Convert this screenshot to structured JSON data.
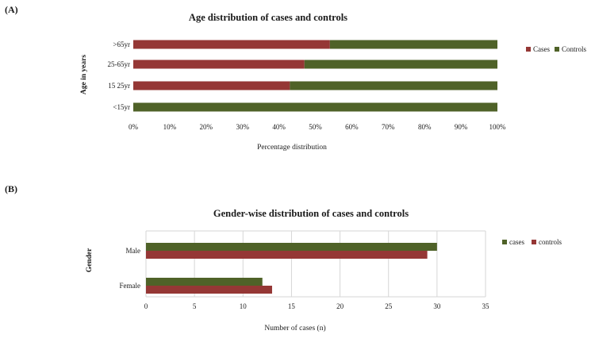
{
  "colors": {
    "red": "#953735",
    "green": "#4f6228"
  },
  "chart_data": [
    {
      "panel_label": "(A)",
      "type": "bar",
      "orientation": "horizontal",
      "stacked": "percent",
      "title": "Age distribution of cases and controls",
      "xlabel": "Percentage distribution",
      "ylabel": "Age in years",
      "categories": [
        ">65yr",
        "25-65yr",
        "15 25yr",
        "<15yr"
      ],
      "series": [
        {
          "name": "Cases",
          "color": "#953735",
          "values": [
            54,
            47,
            43,
            0
          ]
        },
        {
          "name": "Controls",
          "color": "#4f6228",
          "values": [
            46,
            53,
            57,
            100
          ]
        }
      ],
      "xticks": [
        "0%",
        "10%",
        "20%",
        "30%",
        "40%",
        "50%",
        "60%",
        "70%",
        "80%",
        "90%",
        "100%"
      ],
      "xlim": [
        0,
        100
      ],
      "grid": false,
      "legend": "right"
    },
    {
      "panel_label": "(B)",
      "type": "bar",
      "orientation": "horizontal",
      "stacked": "none",
      "title": "Gender-wise distribution of cases and controls",
      "xlabel": "Number of cases (n)",
      "ylabel": "Gender",
      "categories": [
        "Male",
        "Female"
      ],
      "series": [
        {
          "name": "cases",
          "color": "#4f6228",
          "values": [
            30,
            12
          ]
        },
        {
          "name": "controls",
          "color": "#953735",
          "values": [
            29,
            13
          ]
        }
      ],
      "xticks": [
        "0",
        "5",
        "10",
        "15",
        "20",
        "25",
        "30",
        "35"
      ],
      "xlim": [
        0,
        35
      ],
      "grid": true,
      "legend": "right"
    }
  ]
}
